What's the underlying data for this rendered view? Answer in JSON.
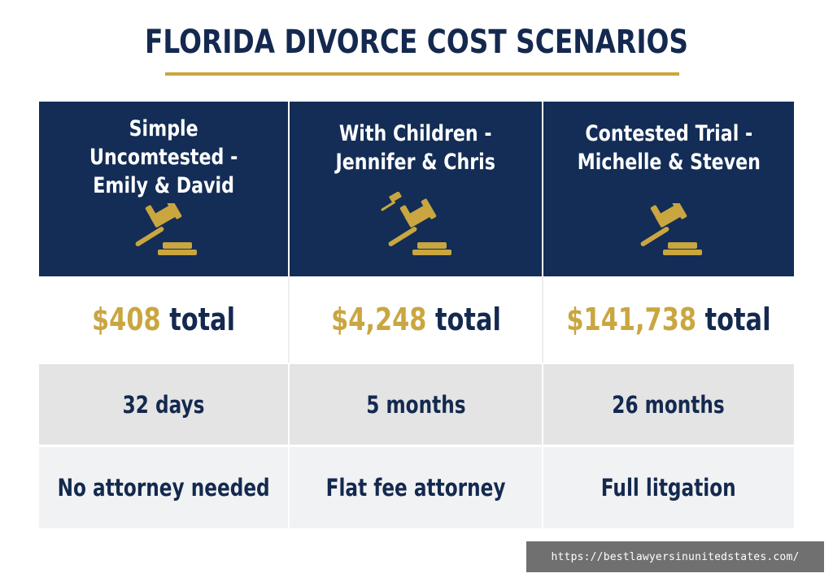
{
  "title": "FLORIDA DIVORCE COST SCENARIOS",
  "colors": {
    "navy": "#132d56",
    "gold": "#c9a640",
    "grey_row": "#e4e4e4",
    "light_row": "#f1f2f3"
  },
  "scenarios": [
    {
      "label": "Simple\nUncomtested -\nEmily & David",
      "icon": "gavel-icon",
      "cost_amount": "$408",
      "cost_word": "total",
      "duration": "32 days",
      "attorney": "No attorney needed"
    },
    {
      "label": "With Children -\nJennifer & Chris",
      "icon": "gavel-icon",
      "cost_amount": "$4,248",
      "cost_word": "total",
      "duration": "5 months",
      "attorney": "Flat fee attorney"
    },
    {
      "label": "Contested Trial -\nMichelle & Steven",
      "icon": "gavel-icon",
      "cost_amount": "$141,738",
      "cost_word": "total",
      "duration": "26 months",
      "attorney": "Full litgation"
    }
  ],
  "watermark_url": "https://bestlawyersinunitedstates.com/"
}
